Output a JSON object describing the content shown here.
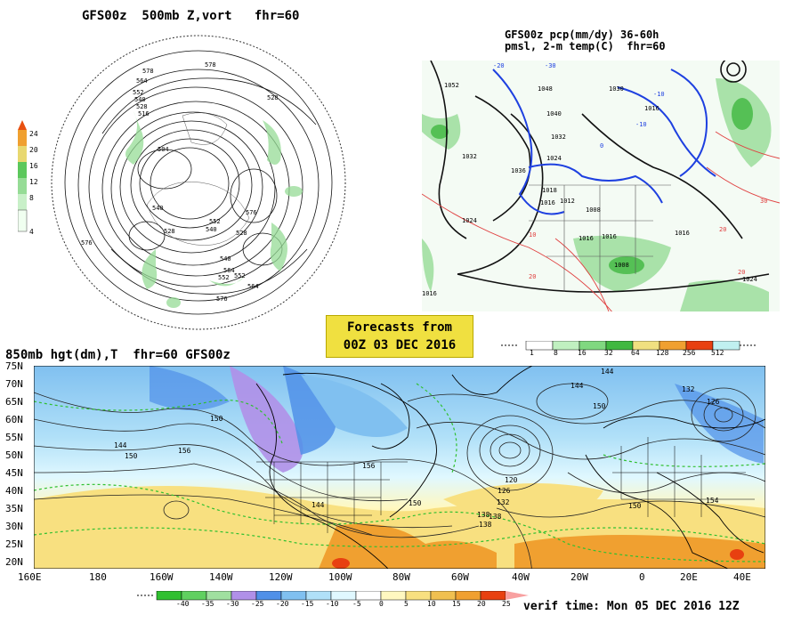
{
  "panel_500mb": {
    "title": "GFS00z  500mb Z,vort   fhr=60",
    "colorbar_ticks": [
      "24",
      "20",
      "16",
      "12",
      "8",
      "4"
    ],
    "contour_labels": [
      "578",
      "564",
      "552",
      "540",
      "528",
      "516",
      "504",
      "540",
      "528",
      "576",
      "564",
      "552",
      "540",
      "528",
      "576",
      "540",
      "552",
      "576",
      "528",
      "552",
      "564",
      "578"
    ]
  },
  "panel_pcp": {
    "title_line1": "GFS00z pcp(mm/dy) 36-60h",
    "title_line2": "pmsl, 2-m temp(C)  fhr=60",
    "isobar_labels": [
      "1032",
      "1024",
      "1036",
      "1016",
      "1024",
      "1012",
      "1018",
      "1016",
      "1008",
      "1016",
      "1016",
      "1016",
      "1024",
      "1008",
      "1040",
      "1048",
      "1030",
      "1016",
      "1032",
      "1052"
    ],
    "temp_labels": [
      "-20",
      "-30",
      "-10",
      "0",
      "10",
      "-10",
      "20",
      "30",
      "20",
      "20"
    ],
    "colorbar_ticks": [
      "1",
      "8",
      "16",
      "32",
      "64",
      "128",
      "256",
      "512"
    ]
  },
  "forecast_box": {
    "line1": "Forecasts from",
    "line2": "00Z 03 DEC 2016"
  },
  "panel_850mb": {
    "title": "850mb hgt(dm),T  fhr=60 GFS00z",
    "lat_labels": [
      "75N",
      "70N",
      "65N",
      "60N",
      "55N",
      "50N",
      "45N",
      "40N",
      "35N",
      "30N",
      "25N",
      "20N"
    ],
    "lon_labels": [
      "160E",
      "180",
      "160W",
      "140W",
      "120W",
      "100W",
      "80W",
      "60W",
      "40W",
      "20W",
      "0",
      "20E",
      "40E"
    ],
    "height_labels": [
      "144",
      "150",
      "156",
      "150",
      "156",
      "150",
      "144",
      "138",
      "132",
      "126",
      "120",
      "138",
      "144",
      "150",
      "144",
      "132",
      "126",
      "150",
      "154",
      "138"
    ],
    "colorbar_ticks": [
      "-40",
      "-35",
      "-30",
      "-25",
      "-20",
      "-15",
      "-10",
      "-5",
      "0",
      "5",
      "10",
      "15",
      "20",
      "25"
    ]
  },
  "verif_time": "verif time: Mon 05 DEC 2016 12Z",
  "colors": {
    "forecast_box_bg": "#f0e040",
    "vort_scale": [
      "#f0fff0",
      "#c8f0c8",
      "#96dc96",
      "#5cc85c",
      "#e8d870",
      "#f0a030",
      "#e85010"
    ],
    "pcp_scale": [
      "#ffffff",
      "#c0f0c0",
      "#80d880",
      "#40b840",
      "#f0e080",
      "#f0a030",
      "#e84010",
      "#c0f0f0"
    ],
    "temp_scale": [
      "#30c030",
      "#60d060",
      "#a0e0a0",
      "#b090e8",
      "#5090e8",
      "#80c0f0",
      "#b0e0f8",
      "#e0f8ff",
      "#ffffff",
      "#fff8c0",
      "#f8e080",
      "#f0c050",
      "#f0a030",
      "#e84010"
    ]
  }
}
